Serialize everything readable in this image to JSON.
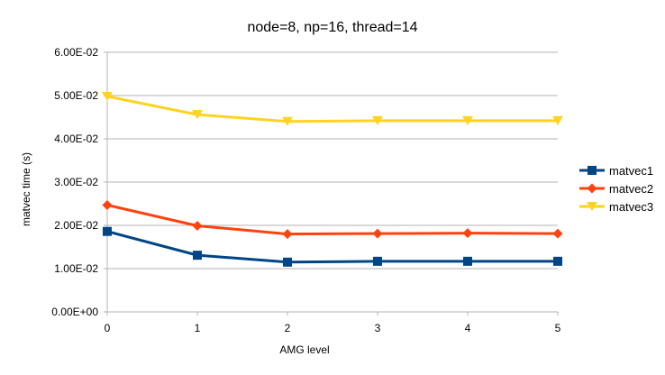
{
  "chart_data": {
    "type": "line",
    "title": "node=8, np=16, thread=14",
    "xlabel": "AMG level",
    "ylabel": "matvec time (s)",
    "x": [
      0,
      1,
      2,
      3,
      4,
      5
    ],
    "x_tick_labels": [
      "0",
      "1",
      "2",
      "3",
      "4",
      "5"
    ],
    "xlim": [
      0,
      5
    ],
    "ylim": [
      0,
      0.06
    ],
    "y_ticks": [
      0,
      0.01,
      0.02,
      0.03,
      0.04,
      0.05,
      0.06
    ],
    "y_tick_labels": [
      "0.00E+00",
      "1.00E-02",
      "2.00E-02",
      "3.00E-02",
      "4.00E-02",
      "5.00E-02",
      "6.00E-02"
    ],
    "grid": "horizontal",
    "legend_position": "right",
    "series": [
      {
        "name": "matvec1",
        "color": "#004586",
        "marker": "square",
        "values": [
          0.0186,
          0.0131,
          0.0115,
          0.0117,
          0.0117,
          0.0117
        ]
      },
      {
        "name": "matvec2",
        "color": "#ff420e",
        "marker": "diamond",
        "values": [
          0.0247,
          0.0199,
          0.018,
          0.0181,
          0.0182,
          0.0181
        ]
      },
      {
        "name": "matvec3",
        "color": "#ffd320",
        "marker": "triangle-down",
        "values": [
          0.0498,
          0.0456,
          0.044,
          0.0442,
          0.0442,
          0.0442
        ]
      }
    ]
  }
}
